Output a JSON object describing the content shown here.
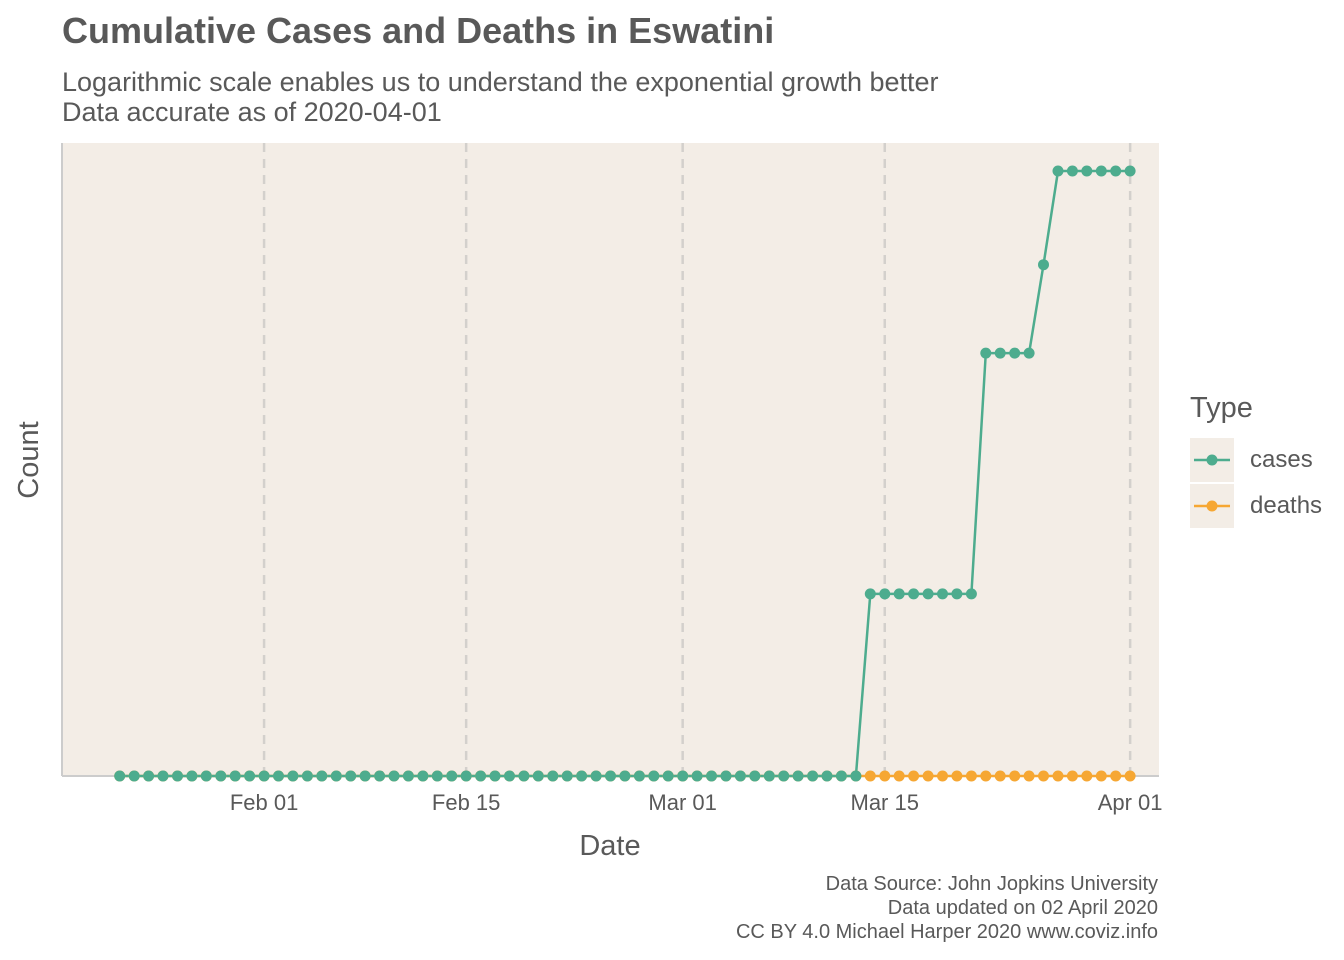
{
  "chart_data": {
    "type": "line",
    "title": "Cumulative Cases and Deaths in Eswatini",
    "subtitle_lines": [
      "Logarithmic scale enables us to understand the exponential growth better",
      "Data accurate as of 2020-04-01"
    ],
    "xlabel": "Date",
    "ylabel": "Count",
    "y_scale": "log",
    "x_tick_labels": [
      "Feb 01",
      "Feb 15",
      "Mar 01",
      "Mar 15",
      "Apr 01"
    ],
    "x_tick_dates": [
      "2020-02-01",
      "2020-02-15",
      "2020-03-01",
      "2020-03-15",
      "2020-04-01"
    ],
    "x_range": [
      "2020-01-18",
      "2020-04-03"
    ],
    "grid": "dashed vertical major",
    "legend": {
      "title": "Type",
      "placement": "right",
      "entries": [
        "cases",
        "deaths"
      ]
    },
    "series": [
      {
        "name": "cases",
        "color": "#4dac8e",
        "points": [
          [
            "2020-01-22",
            0
          ],
          [
            "2020-01-23",
            0
          ],
          [
            "2020-01-24",
            0
          ],
          [
            "2020-01-25",
            0
          ],
          [
            "2020-01-26",
            0
          ],
          [
            "2020-01-27",
            0
          ],
          [
            "2020-01-28",
            0
          ],
          [
            "2020-01-29",
            0
          ],
          [
            "2020-01-30",
            0
          ],
          [
            "2020-01-31",
            0
          ],
          [
            "2020-02-01",
            0
          ],
          [
            "2020-02-02",
            0
          ],
          [
            "2020-02-03",
            0
          ],
          [
            "2020-02-04",
            0
          ],
          [
            "2020-02-05",
            0
          ],
          [
            "2020-02-06",
            0
          ],
          [
            "2020-02-07",
            0
          ],
          [
            "2020-02-08",
            0
          ],
          [
            "2020-02-09",
            0
          ],
          [
            "2020-02-10",
            0
          ],
          [
            "2020-02-11",
            0
          ],
          [
            "2020-02-12",
            0
          ],
          [
            "2020-02-13",
            0
          ],
          [
            "2020-02-14",
            0
          ],
          [
            "2020-02-15",
            0
          ],
          [
            "2020-02-16",
            0
          ],
          [
            "2020-02-17",
            0
          ],
          [
            "2020-02-18",
            0
          ],
          [
            "2020-02-19",
            0
          ],
          [
            "2020-02-20",
            0
          ],
          [
            "2020-02-21",
            0
          ],
          [
            "2020-02-22",
            0
          ],
          [
            "2020-02-23",
            0
          ],
          [
            "2020-02-24",
            0
          ],
          [
            "2020-02-25",
            0
          ],
          [
            "2020-02-26",
            0
          ],
          [
            "2020-02-27",
            0
          ],
          [
            "2020-02-28",
            0
          ],
          [
            "2020-02-29",
            0
          ],
          [
            "2020-03-01",
            0
          ],
          [
            "2020-03-02",
            0
          ],
          [
            "2020-03-03",
            0
          ],
          [
            "2020-03-04",
            0
          ],
          [
            "2020-03-05",
            0
          ],
          [
            "2020-03-06",
            0
          ],
          [
            "2020-03-07",
            0
          ],
          [
            "2020-03-08",
            0
          ],
          [
            "2020-03-09",
            0
          ],
          [
            "2020-03-10",
            0
          ],
          [
            "2020-03-11",
            0
          ],
          [
            "2020-03-12",
            0
          ],
          [
            "2020-03-13",
            0
          ],
          [
            "2020-03-14",
            1
          ],
          [
            "2020-03-15",
            1
          ],
          [
            "2020-03-16",
            1
          ],
          [
            "2020-03-17",
            1
          ],
          [
            "2020-03-18",
            1
          ],
          [
            "2020-03-19",
            1
          ],
          [
            "2020-03-20",
            1
          ],
          [
            "2020-03-21",
            1
          ],
          [
            "2020-03-22",
            4
          ],
          [
            "2020-03-23",
            4
          ],
          [
            "2020-03-24",
            4
          ],
          [
            "2020-03-25",
            4
          ],
          [
            "2020-03-26",
            6
          ],
          [
            "2020-03-27",
            9
          ],
          [
            "2020-03-28",
            9
          ],
          [
            "2020-03-29",
            9
          ],
          [
            "2020-03-30",
            9
          ],
          [
            "2020-03-31",
            9
          ],
          [
            "2020-04-01",
            9
          ]
        ]
      },
      {
        "name": "deaths",
        "color": "#f6a733",
        "points": [
          [
            "2020-01-22",
            0
          ],
          [
            "2020-01-23",
            0
          ],
          [
            "2020-01-24",
            0
          ],
          [
            "2020-01-25",
            0
          ],
          [
            "2020-01-26",
            0
          ],
          [
            "2020-01-27",
            0
          ],
          [
            "2020-01-28",
            0
          ],
          [
            "2020-01-29",
            0
          ],
          [
            "2020-01-30",
            0
          ],
          [
            "2020-01-31",
            0
          ],
          [
            "2020-02-01",
            0
          ],
          [
            "2020-02-02",
            0
          ],
          [
            "2020-02-03",
            0
          ],
          [
            "2020-02-04",
            0
          ],
          [
            "2020-02-05",
            0
          ],
          [
            "2020-02-06",
            0
          ],
          [
            "2020-02-07",
            0
          ],
          [
            "2020-02-08",
            0
          ],
          [
            "2020-02-09",
            0
          ],
          [
            "2020-02-10",
            0
          ],
          [
            "2020-02-11",
            0
          ],
          [
            "2020-02-12",
            0
          ],
          [
            "2020-02-13",
            0
          ],
          [
            "2020-02-14",
            0
          ],
          [
            "2020-02-15",
            0
          ],
          [
            "2020-02-16",
            0
          ],
          [
            "2020-02-17",
            0
          ],
          [
            "2020-02-18",
            0
          ],
          [
            "2020-02-19",
            0
          ],
          [
            "2020-02-20",
            0
          ],
          [
            "2020-02-21",
            0
          ],
          [
            "2020-02-22",
            0
          ],
          [
            "2020-02-23",
            0
          ],
          [
            "2020-02-24",
            0
          ],
          [
            "2020-02-25",
            0
          ],
          [
            "2020-02-26",
            0
          ],
          [
            "2020-02-27",
            0
          ],
          [
            "2020-02-28",
            0
          ],
          [
            "2020-02-29",
            0
          ],
          [
            "2020-03-01",
            0
          ],
          [
            "2020-03-02",
            0
          ],
          [
            "2020-03-03",
            0
          ],
          [
            "2020-03-04",
            0
          ],
          [
            "2020-03-05",
            0
          ],
          [
            "2020-03-06",
            0
          ],
          [
            "2020-03-07",
            0
          ],
          [
            "2020-03-08",
            0
          ],
          [
            "2020-03-09",
            0
          ],
          [
            "2020-03-10",
            0
          ],
          [
            "2020-03-11",
            0
          ],
          [
            "2020-03-12",
            0
          ],
          [
            "2020-03-13",
            0
          ],
          [
            "2020-03-14",
            0
          ],
          [
            "2020-03-15",
            0
          ],
          [
            "2020-03-16",
            0
          ],
          [
            "2020-03-17",
            0
          ],
          [
            "2020-03-18",
            0
          ],
          [
            "2020-03-19",
            0
          ],
          [
            "2020-03-20",
            0
          ],
          [
            "2020-03-21",
            0
          ],
          [
            "2020-03-22",
            0
          ],
          [
            "2020-03-23",
            0
          ],
          [
            "2020-03-24",
            0
          ],
          [
            "2020-03-25",
            0
          ],
          [
            "2020-03-26",
            0
          ],
          [
            "2020-03-27",
            0
          ],
          [
            "2020-03-28",
            0
          ],
          [
            "2020-03-29",
            0
          ],
          [
            "2020-03-30",
            0
          ],
          [
            "2020-03-31",
            0
          ],
          [
            "2020-04-01",
            0
          ]
        ]
      }
    ]
  },
  "caption_lines": [
    "Data Source: John Jopkins University",
    "Data updated on 02 April 2020",
    "CC BY 4.0 Michael Harper 2020 www.coviz.info"
  ],
  "colors": {
    "panel_background": "#f3ede6",
    "cases": "#4dac8e",
    "deaths": "#f6a733",
    "text": "#595959"
  }
}
